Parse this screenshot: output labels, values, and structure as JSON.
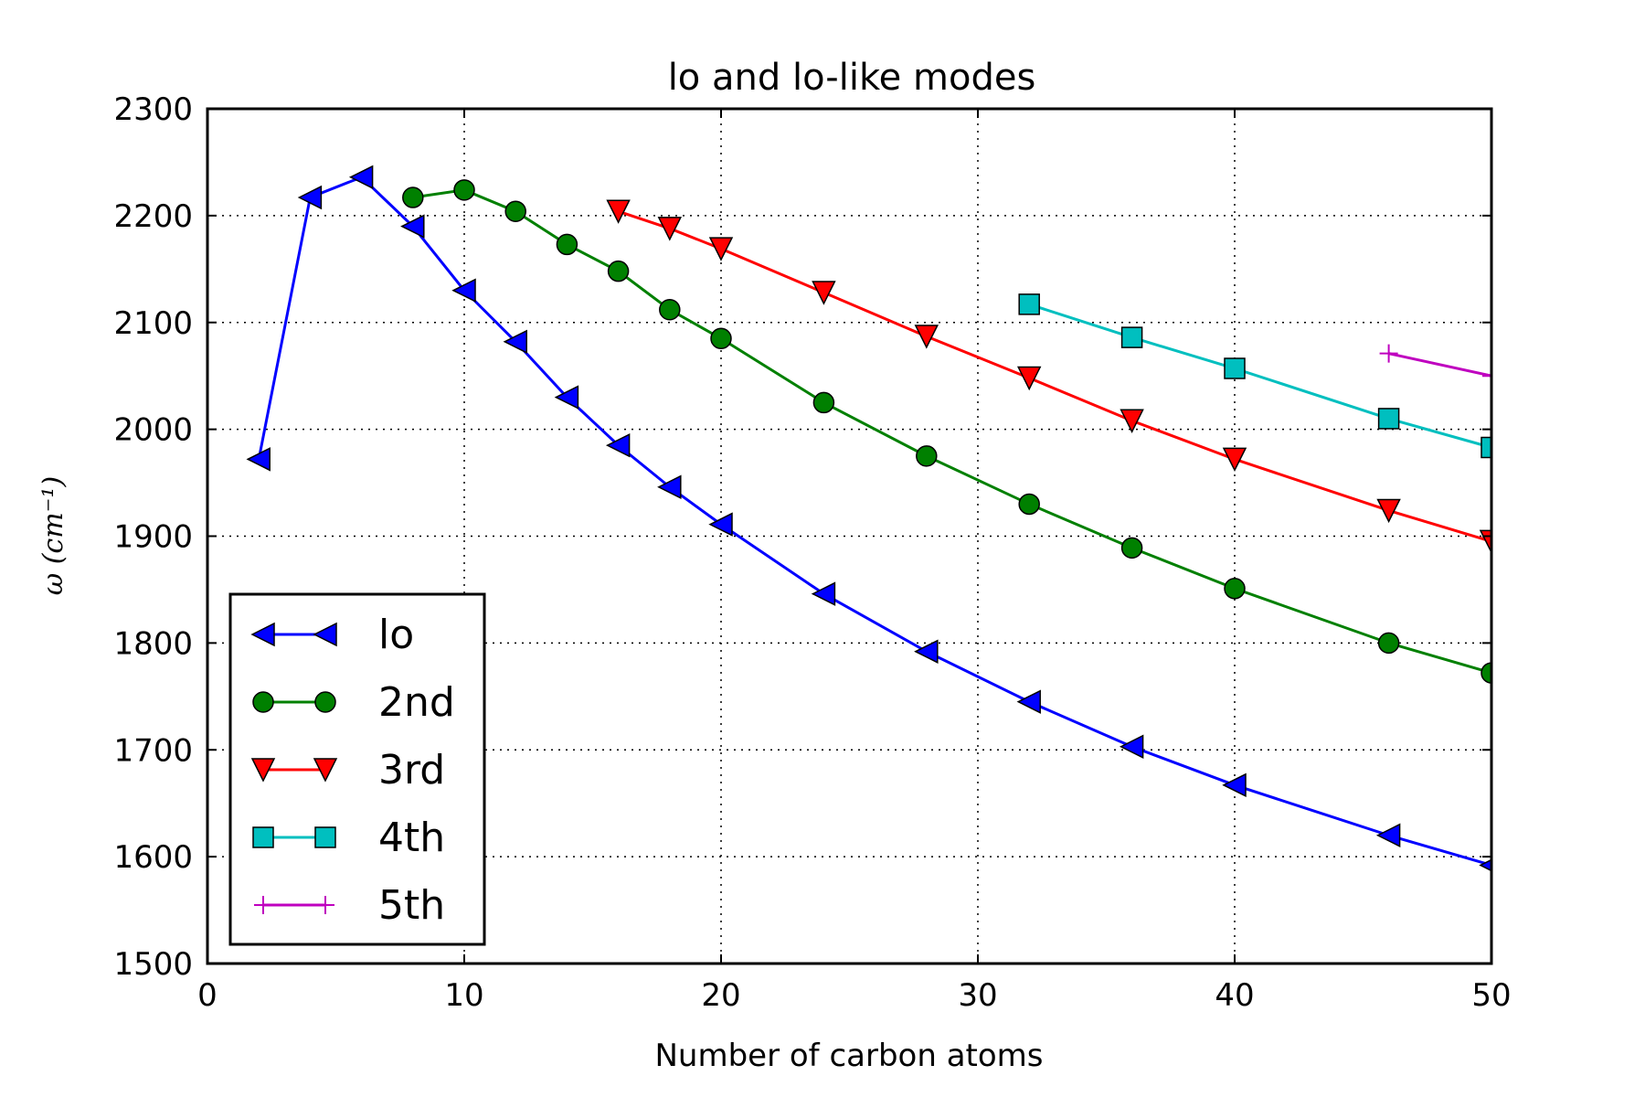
{
  "chart_data": {
    "type": "line",
    "title": "lo and lo-like modes",
    "xlabel": "Number of carbon atoms",
    "ylabel": "ω (cm⁻¹)",
    "xlim": [
      0,
      50
    ],
    "ylim": [
      1500,
      2300
    ],
    "xticks": [
      0,
      10,
      20,
      30,
      40,
      50
    ],
    "yticks": [
      1500,
      1600,
      1700,
      1800,
      1900,
      2000,
      2100,
      2200,
      2300
    ],
    "grid": true,
    "legend_position": "lower-left",
    "series": [
      {
        "name": "lo",
        "color": "#0000ff",
        "marker": "triangle-left",
        "x": [
          2,
          4,
          6,
          8,
          10,
          12,
          14,
          16,
          18,
          20,
          24,
          28,
          32,
          36,
          40,
          46,
          50
        ],
        "y": [
          1972,
          2217,
          2236,
          2190,
          2130,
          2082,
          2030,
          1985,
          1946,
          1911,
          1846,
          1792,
          1745,
          1703,
          1667,
          1620,
          1592
        ]
      },
      {
        "name": "2nd",
        "color": "#008000",
        "marker": "circle",
        "x": [
          8,
          10,
          12,
          14,
          16,
          18,
          20,
          24,
          28,
          32,
          36,
          40,
          46,
          50
        ],
        "y": [
          2217,
          2224,
          2204,
          2173,
          2148,
          2112,
          2085,
          2025,
          1975,
          1930,
          1889,
          1851,
          1800,
          1772
        ]
      },
      {
        "name": "3rd",
        "color": "#ff0000",
        "marker": "triangle-down",
        "x": [
          16,
          18,
          20,
          24,
          28,
          32,
          36,
          40,
          46,
          50
        ],
        "y": [
          2204,
          2188,
          2169,
          2128,
          2087,
          2048,
          2008,
          1972,
          1924,
          1895
        ]
      },
      {
        "name": "4th",
        "color": "#00bfbf",
        "marker": "square",
        "x": [
          32,
          36,
          40,
          46,
          50
        ],
        "y": [
          2117,
          2086,
          2057,
          2010,
          1983
        ]
      },
      {
        "name": "5th",
        "color": "#bf00bf",
        "marker": "plus",
        "x": [
          46,
          50
        ],
        "y": [
          2071,
          2050
        ]
      }
    ]
  }
}
